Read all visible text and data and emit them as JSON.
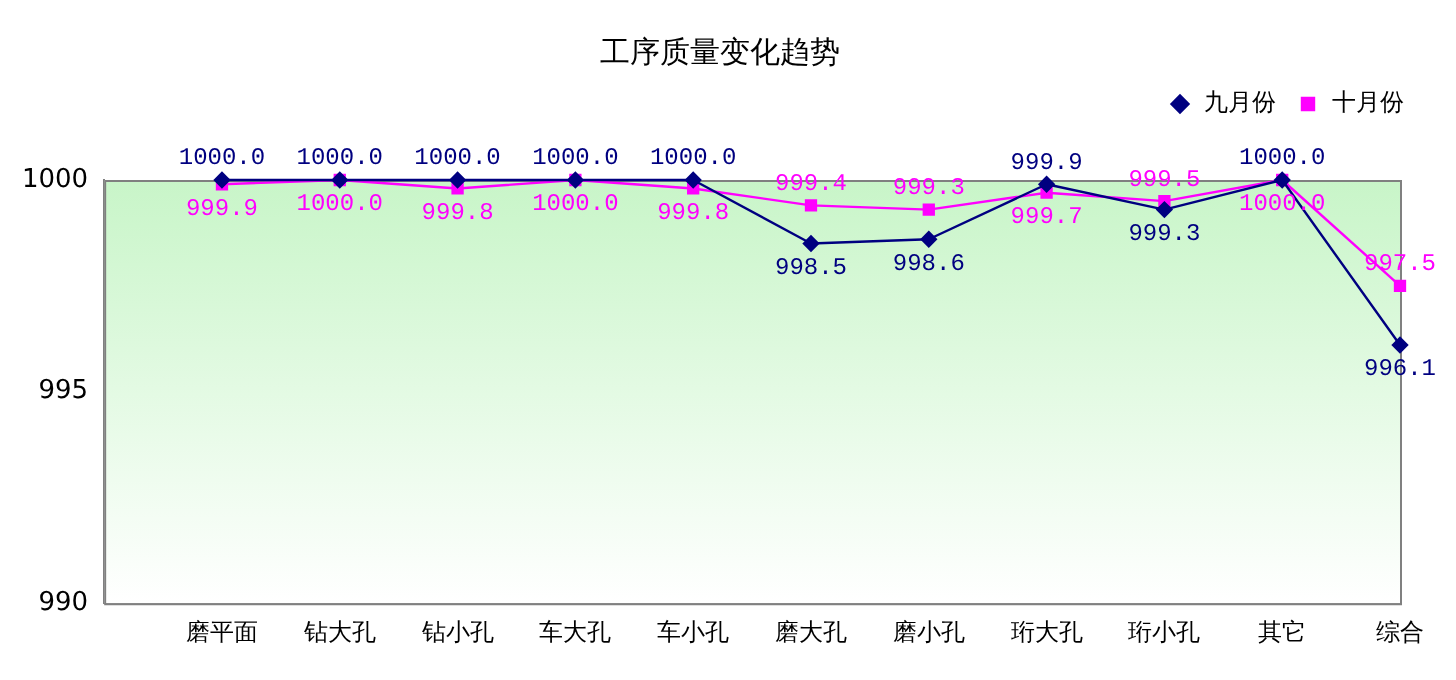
{
  "chart_data": {
    "type": "line",
    "title": "工序质量变化趋势",
    "categories": [
      null,
      "磨平面",
      "钻大孔",
      "钻小孔",
      "车大孔",
      "车小孔",
      "磨大孔",
      "磨小孔",
      "珩大孔",
      "珩小孔",
      "其它",
      "综合"
    ],
    "series": [
      {
        "name": "九月份",
        "color": "#000080",
        "marker": "diamond",
        "values": [
          null,
          1000.0,
          1000.0,
          1000.0,
          1000.0,
          1000.0,
          998.5,
          998.6,
          999.9,
          999.3,
          1000.0,
          996.1
        ],
        "value_labels": [
          null,
          "1000.0",
          "1000.0",
          "1000.0",
          "1000.0",
          "1000.0",
          "998.5",
          "998.6",
          "999.9",
          "999.3",
          "1000.0",
          "996.1"
        ]
      },
      {
        "name": "十月份",
        "color": "#ff00ff",
        "marker": "square",
        "values": [
          null,
          999.9,
          1000.0,
          999.8,
          1000.0,
          999.8,
          999.4,
          999.3,
          999.7,
          999.5,
          1000.0,
          997.5
        ],
        "value_labels": [
          null,
          "999.9",
          "1000.0",
          "999.8",
          "1000.0",
          "999.8",
          "999.4",
          "999.3",
          "999.7",
          "999.5",
          "1000.0",
          "997.5"
        ]
      }
    ],
    "ylim": [
      990,
      1000
    ],
    "yticks": [
      990,
      995,
      1000
    ],
    "grid": false,
    "legend": "top right"
  }
}
